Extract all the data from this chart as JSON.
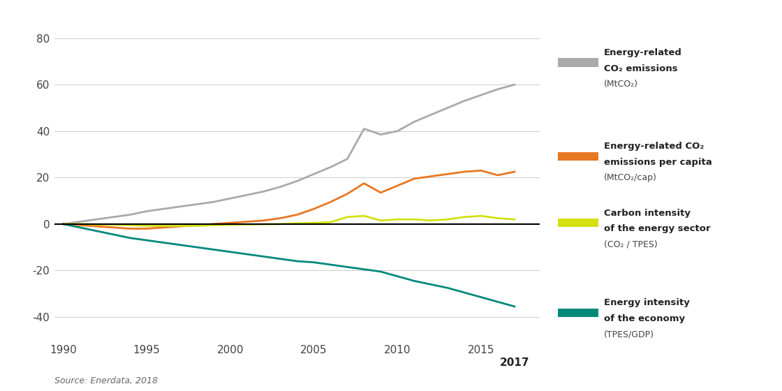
{
  "years": [
    1990,
    1991,
    1992,
    1993,
    1994,
    1995,
    1996,
    1997,
    1998,
    1999,
    2000,
    2001,
    2002,
    2003,
    2004,
    2005,
    2006,
    2007,
    2008,
    2009,
    2010,
    2011,
    2012,
    2013,
    2014,
    2015,
    2016,
    2017
  ],
  "co2_emissions": [
    0,
    1.0,
    2.0,
    3.0,
    4.0,
    5.5,
    6.5,
    7.5,
    8.5,
    9.5,
    11.0,
    12.5,
    14.0,
    16.0,
    18.5,
    21.5,
    24.5,
    28.0,
    41.0,
    38.5,
    40.0,
    44.0,
    47.0,
    50.0,
    53.0,
    55.5,
    58.0,
    60.0
  ],
  "co2_per_capita": [
    0,
    -0.5,
    -1.0,
    -1.5,
    -2.0,
    -2.0,
    -1.5,
    -1.0,
    -0.5,
    0.0,
    0.5,
    1.0,
    1.5,
    2.5,
    4.0,
    6.5,
    9.5,
    13.0,
    17.5,
    13.5,
    16.5,
    19.5,
    20.5,
    21.5,
    22.5,
    23.0,
    21.0,
    22.5
  ],
  "carbon_intensity": [
    0,
    0.0,
    -0.2,
    -0.3,
    -0.5,
    -0.8,
    -0.8,
    -0.8,
    -0.8,
    -0.5,
    -0.3,
    -0.2,
    -0.1,
    0.0,
    0.3,
    0.5,
    0.8,
    3.0,
    3.5,
    1.5,
    2.0,
    2.0,
    1.5,
    2.0,
    3.0,
    3.5,
    2.5,
    2.0
  ],
  "energy_intensity": [
    0,
    -1.5,
    -3.0,
    -4.5,
    -6.0,
    -7.0,
    -8.0,
    -9.0,
    -10.0,
    -11.0,
    -12.0,
    -13.0,
    -14.0,
    -15.0,
    -16.0,
    -16.5,
    -17.5,
    -18.5,
    -19.5,
    -20.5,
    -22.5,
    -24.5,
    -26.0,
    -27.5,
    -29.5,
    -31.5,
    -33.5,
    -35.5
  ],
  "color_co2": "#AAAAAA",
  "color_per_capita": "#E87722",
  "color_carbon_intensity": "#D4E011",
  "color_energy_intensity": "#00897B",
  "color_zeroline": "#000000",
  "color_grid": "#CCCCCC",
  "color_bg": "#FFFFFF",
  "yticks": [
    -40,
    -20,
    0,
    20,
    40,
    60,
    80
  ],
  "xticks": [
    1990,
    1995,
    2000,
    2005,
    2010,
    2015,
    2017
  ],
  "ylim": [
    -50,
    88
  ],
  "xlim": [
    1989.5,
    2018.5
  ],
  "source_text": "Source: Enerdata, 2018",
  "legend": [
    {
      "line1_bold": "Energy-related",
      "line2_bold": "CO₂ emissions",
      "line3": "(MtCO₂)",
      "color": "#AAAAAA",
      "fig_y": 0.84
    },
    {
      "line1_bold": "Energy-related CO₂",
      "line2_bold": "emissions per capita",
      "line3": "(MtCO₂/cap)",
      "color": "#E87722",
      "fig_y": 0.6
    },
    {
      "line1_bold": "Carbon intensity",
      "line2_bold": "of the energy sector",
      "line3": "(CO₂ / TPES)",
      "color": "#D4E011",
      "fig_y": 0.43
    },
    {
      "line1_bold": "Energy intensity",
      "line2_bold": "of the economy",
      "line3": "(TPES/GDP)",
      "color": "#00897B",
      "fig_y": 0.2
    }
  ]
}
